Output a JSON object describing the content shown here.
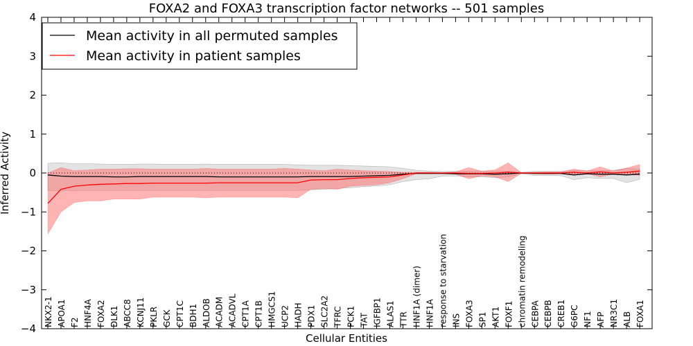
{
  "chart_data": {
    "type": "line",
    "title": "FOXA2 and FOXA3 transcription factor networks -- 501 samples",
    "xlabel": "Cellular Entities",
    "ylabel": "Inferred Activity",
    "ylim": [
      -4,
      4
    ],
    "yticks": [
      "−4",
      "−3",
      "−2",
      "−1",
      "0",
      "1",
      "2",
      "3",
      "4"
    ],
    "reference_line": 0,
    "categories": [
      "NKX2-1",
      "APOA1",
      "F2",
      "HNF4A",
      "FOXA2",
      "DLK1",
      "ABCC8",
      "KCNJ11",
      "PKLR",
      "GCK",
      "CPT1C",
      "BDH1",
      "ALDOB",
      "ACADM",
      "ACADVL",
      "CPT1A",
      "CPT1B",
      "HMGCS1",
      "UCP2",
      "HADH",
      "PDX1",
      "SLC2A2",
      "TFRC",
      "PCK1",
      "TAT",
      "IGFBP1",
      "ALAS1",
      "TTR",
      "HNF1A (dimer)",
      "HNF1A",
      "response to starvation",
      "INS",
      "FOXA3",
      "SP1",
      "AKT1",
      "FOXF1",
      "chromatin remodeling",
      "CEBPA",
      "CEBPB",
      "CREB1",
      "G6PC",
      "NF1",
      "AFP",
      "NR3C1",
      "ALB",
      "FOXA1"
    ],
    "series": [
      {
        "name": "Mean activity in all permuted samples",
        "color": "#000000",
        "values": [
          -0.05,
          -0.08,
          -0.09,
          -0.09,
          -0.09,
          -0.1,
          -0.1,
          -0.09,
          -0.09,
          -0.09,
          -0.09,
          -0.09,
          -0.09,
          -0.1,
          -0.1,
          -0.1,
          -0.1,
          -0.1,
          -0.1,
          -0.1,
          -0.09,
          -0.09,
          -0.09,
          -0.09,
          -0.08,
          -0.07,
          -0.06,
          -0.03,
          -0.01,
          -0.01,
          -0.01,
          -0.02,
          -0.02,
          -0.02,
          -0.03,
          -0.02,
          0.0,
          -0.01,
          -0.01,
          -0.01,
          -0.05,
          -0.02,
          -0.03,
          -0.03,
          -0.05,
          -0.03
        ],
        "band_low": [
          -0.45,
          -0.45,
          -0.45,
          -0.45,
          -0.45,
          -0.45,
          -0.45,
          -0.45,
          -0.45,
          -0.45,
          -0.45,
          -0.45,
          -0.45,
          -0.45,
          -0.45,
          -0.45,
          -0.45,
          -0.45,
          -0.45,
          -0.45,
          -0.43,
          -0.42,
          -0.4,
          -0.38,
          -0.35,
          -0.33,
          -0.3,
          -0.22,
          -0.17,
          -0.15,
          -0.08,
          -0.08,
          -0.1,
          -0.1,
          -0.12,
          -0.1,
          -0.02,
          -0.06,
          -0.06,
          -0.07,
          -0.17,
          -0.12,
          -0.14,
          -0.14,
          -0.25,
          -0.16
        ],
        "band_high": [
          0.25,
          0.26,
          0.24,
          0.24,
          0.23,
          0.22,
          0.22,
          0.23,
          0.23,
          0.22,
          0.22,
          0.22,
          0.23,
          0.22,
          0.22,
          0.22,
          0.22,
          0.22,
          0.22,
          0.21,
          0.2,
          0.2,
          0.2,
          0.19,
          0.18,
          0.17,
          0.16,
          0.12,
          0.07,
          0.05,
          0.04,
          0.04,
          0.05,
          0.05,
          0.05,
          0.05,
          0.02,
          0.04,
          0.04,
          0.04,
          0.07,
          0.06,
          0.06,
          0.07,
          0.12,
          0.1
        ]
      },
      {
        "name": "Mean activity in patient samples",
        "color": "#ff0000",
        "values": [
          -0.78,
          -0.42,
          -0.34,
          -0.31,
          -0.29,
          -0.28,
          -0.27,
          -0.27,
          -0.26,
          -0.26,
          -0.26,
          -0.26,
          -0.26,
          -0.25,
          -0.25,
          -0.25,
          -0.25,
          -0.25,
          -0.25,
          -0.25,
          -0.18,
          -0.17,
          -0.17,
          -0.14,
          -0.12,
          -0.11,
          -0.1,
          -0.05,
          0.0,
          0.0,
          0.0,
          0.0,
          -0.01,
          -0.01,
          0.0,
          0.02,
          0.0,
          0.0,
          0.0,
          0.0,
          0.02,
          0.0,
          0.03,
          0.0,
          0.02,
          0.05
        ],
        "band_low": [
          -1.57,
          -1.0,
          -0.76,
          -0.72,
          -0.72,
          -0.67,
          -0.67,
          -0.67,
          -0.62,
          -0.62,
          -0.62,
          -0.62,
          -0.64,
          -0.62,
          -0.62,
          -0.62,
          -0.62,
          -0.62,
          -0.62,
          -0.64,
          -0.42,
          -0.4,
          -0.42,
          -0.34,
          -0.32,
          -0.3,
          -0.25,
          -0.15,
          -0.02,
          -0.02,
          -0.01,
          -0.03,
          -0.15,
          -0.07,
          -0.1,
          -0.22,
          -0.01,
          -0.02,
          -0.03,
          -0.02,
          -0.03,
          -0.02,
          -0.1,
          -0.03,
          -0.03,
          -0.06
        ],
        "band_high": [
          0.0,
          0.14,
          0.06,
          0.08,
          0.1,
          0.1,
          0.11,
          0.11,
          0.1,
          0.1,
          0.1,
          0.1,
          0.12,
          0.1,
          0.1,
          0.1,
          0.1,
          0.1,
          0.12,
          0.1,
          0.08,
          0.06,
          0.1,
          0.08,
          0.06,
          0.05,
          0.04,
          0.02,
          0.02,
          0.02,
          0.01,
          0.03,
          0.14,
          0.05,
          0.08,
          0.26,
          0.01,
          0.02,
          0.03,
          0.03,
          0.1,
          0.05,
          0.16,
          0.05,
          0.13,
          0.22
        ]
      }
    ],
    "legend": {
      "placement": "top-left",
      "entries": [
        "Mean activity in all permuted samples",
        "Mean activity in patient samples"
      ]
    }
  }
}
